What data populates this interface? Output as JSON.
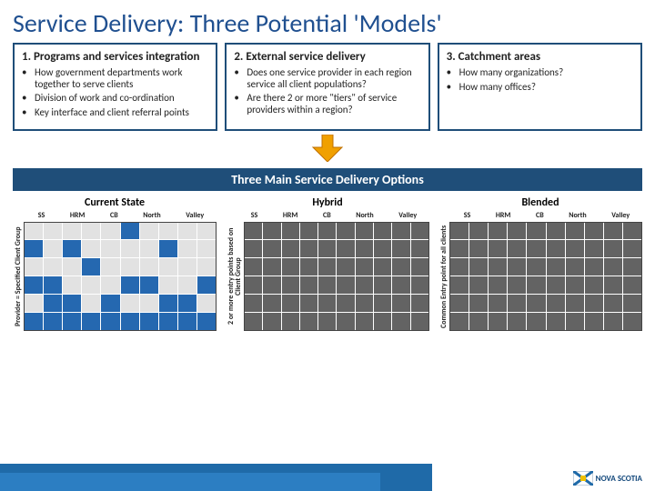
{
  "title": "Service Delivery: Three Potential 'Models'",
  "boxes": [
    {
      "title": "1. Programs and services integration",
      "items": [
        "How government departments work together to serve clients",
        "Division of work and co-ordination",
        "Key interface and client referral points"
      ]
    },
    {
      "title": "2. External service delivery",
      "items": [
        "Does one service provider in each region service all client populations?",
        "Are there 2 or more \"tiers\" of service providers within a region?"
      ]
    },
    {
      "title": "3. Catchment areas",
      "items": [
        "How many organizations?",
        "How many offices?"
      ]
    }
  ],
  "arrow": {
    "fill": "#f0a000",
    "stroke": "#c07000"
  },
  "mid_band": "Three Main Service Delivery Options",
  "regions": [
    "SS",
    "HRM",
    "CB",
    "North",
    "Valley"
  ],
  "charts": [
    {
      "title": "Current State",
      "ylabel": "Provider = Specified Client Group",
      "cells": [
        [
          "g",
          "g",
          "g",
          "g",
          "g",
          "b",
          "g",
          "g",
          "g",
          "g"
        ],
        [
          "b",
          "g",
          "b",
          "g",
          "g",
          "g",
          "g",
          "b",
          "g",
          "g"
        ],
        [
          "g",
          "g",
          "g",
          "b",
          "g",
          "g",
          "g",
          "g",
          "g",
          "g"
        ],
        [
          "b",
          "b",
          "g",
          "g",
          "g",
          "b",
          "b",
          "g",
          "g",
          "b"
        ],
        [
          "g",
          "b",
          "b",
          "g",
          "b",
          "g",
          "g",
          "b",
          "b",
          "g"
        ],
        [
          "b",
          "b",
          "b",
          "b",
          "b",
          "b",
          "b",
          "b",
          "b",
          "b"
        ]
      ]
    },
    {
      "title": "Hybrid",
      "ylabel": "2 or more entry points based on Client Group",
      "cells": [
        [
          "d",
          "d",
          "d",
          "d",
          "d",
          "d",
          "d",
          "d",
          "d",
          "d"
        ],
        [
          "d",
          "d",
          "d",
          "d",
          "d",
          "d",
          "d",
          "d",
          "d",
          "d"
        ],
        [
          "d",
          "d",
          "d",
          "d",
          "d",
          "d",
          "d",
          "d",
          "d",
          "d"
        ],
        [
          "d",
          "d",
          "d",
          "d",
          "d",
          "d",
          "d",
          "d",
          "d",
          "d"
        ],
        [
          "d",
          "d",
          "d",
          "d",
          "d",
          "d",
          "d",
          "d",
          "d",
          "d"
        ],
        [
          "d",
          "d",
          "d",
          "d",
          "d",
          "d",
          "d",
          "d",
          "d",
          "d"
        ]
      ]
    },
    {
      "title": "Blended",
      "ylabel": "Common Entry point for all clients",
      "cells": [
        [
          "d",
          "d",
          "d",
          "d",
          "d",
          "d",
          "d",
          "d",
          "d",
          "d"
        ],
        [
          "d",
          "d",
          "d",
          "d",
          "d",
          "d",
          "d",
          "d",
          "d",
          "d"
        ],
        [
          "d",
          "d",
          "d",
          "d",
          "d",
          "d",
          "d",
          "d",
          "d",
          "d"
        ],
        [
          "d",
          "d",
          "d",
          "d",
          "d",
          "d",
          "d",
          "d",
          "d",
          "d"
        ],
        [
          "d",
          "d",
          "d",
          "d",
          "d",
          "d",
          "d",
          "d",
          "d",
          "d"
        ],
        [
          "d",
          "d",
          "d",
          "d",
          "d",
          "d",
          "d",
          "d",
          "d",
          "d"
        ]
      ]
    }
  ],
  "logo_text": "NOVA SCOTIA",
  "colors": {
    "box_border": "#1f4e79",
    "title_color": "#205090",
    "band_bg": "#1f4e79",
    "cell_g": "#e2e2e2",
    "cell_b": "#2568b0",
    "cell_d": "#636363"
  }
}
